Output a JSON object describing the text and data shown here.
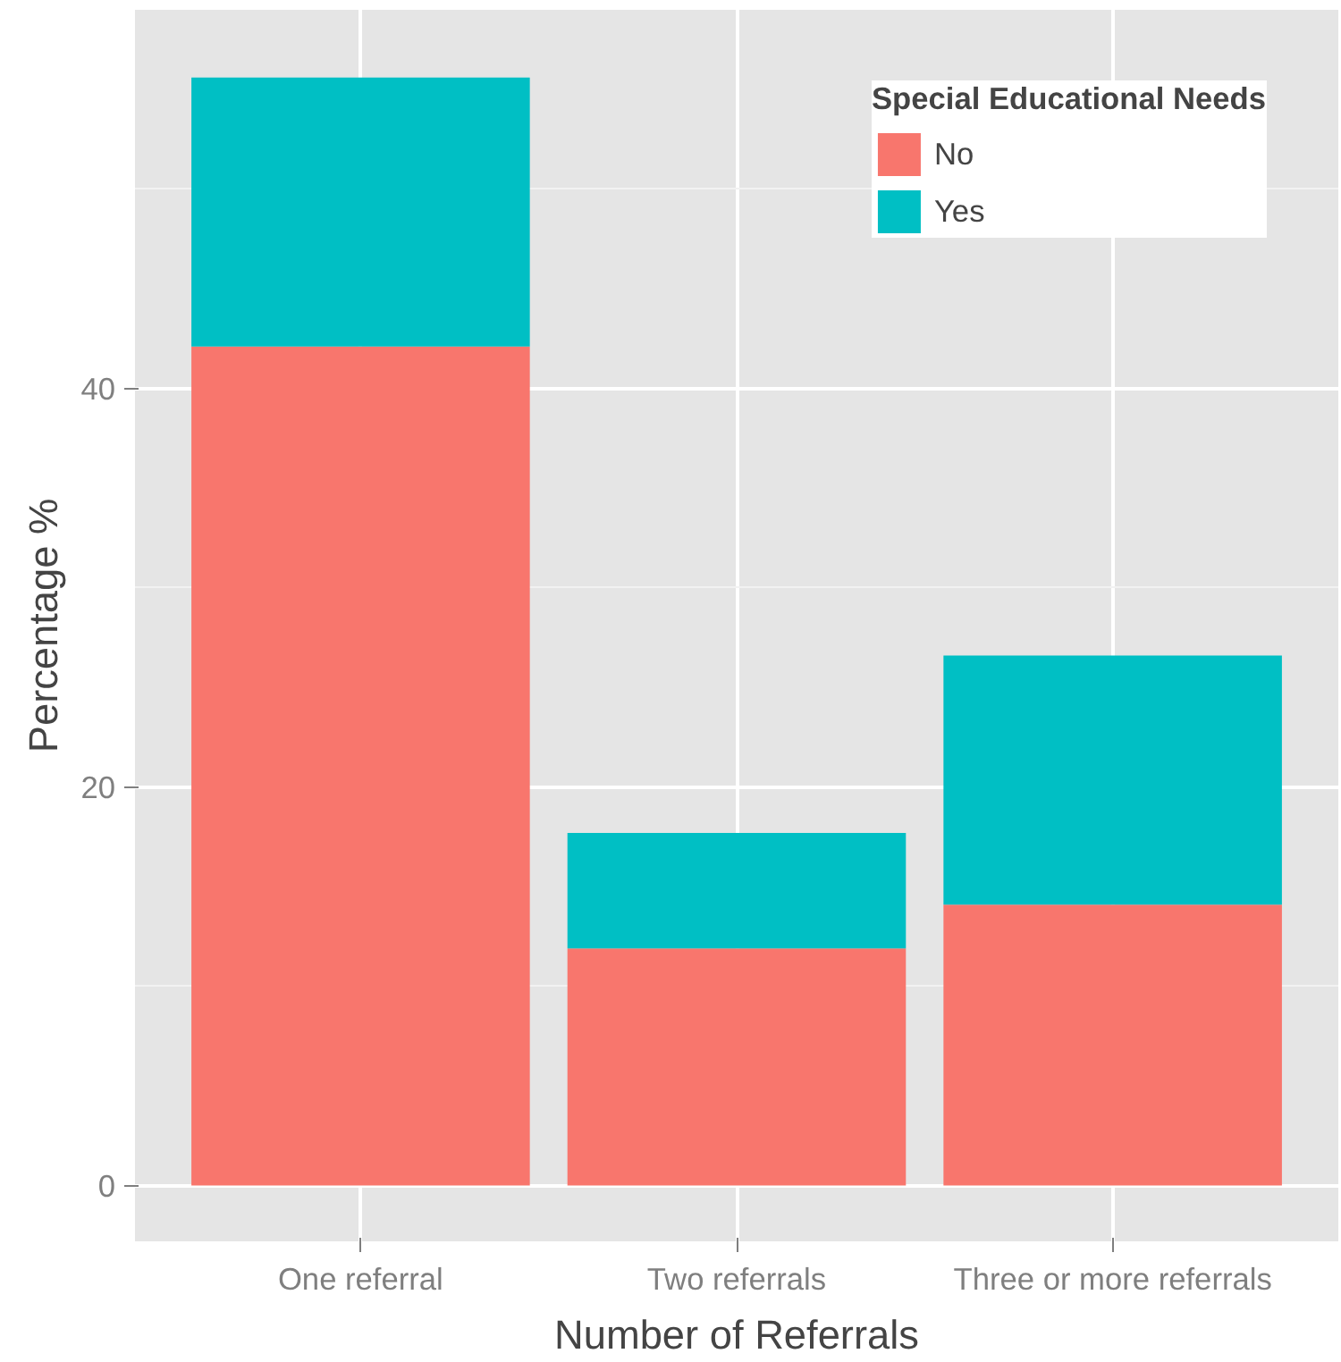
{
  "chart_data": {
    "type": "bar",
    "stacked": true,
    "xlabel": "Number of Referrals",
    "ylabel": "Percentage %",
    "legend_title": "Special Educational Needs",
    "categories": [
      "One referral",
      "Two referrals",
      "Three or more referrals"
    ],
    "series": [
      {
        "name": "No",
        "color": "#f8766d",
        "values": [
          42.1,
          11.9,
          14.1
        ]
      },
      {
        "name": "Yes",
        "color": "#00bfc4",
        "values": [
          13.5,
          5.8,
          12.5
        ]
      }
    ],
    "ylim": [
      -2.8,
      59
    ],
    "yticks": [
      0,
      20,
      40
    ],
    "grid": true,
    "legend": "top right"
  }
}
